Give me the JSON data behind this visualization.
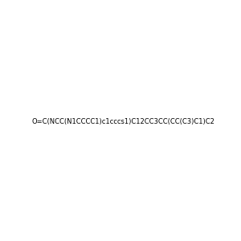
{
  "smiles": "O=C(NCC(N1CCCC1)c1cccs1)C12CC3CC(CC(C3)C1)C2",
  "image_size": 300,
  "background_color": "#f0f0f0",
  "title": ""
}
